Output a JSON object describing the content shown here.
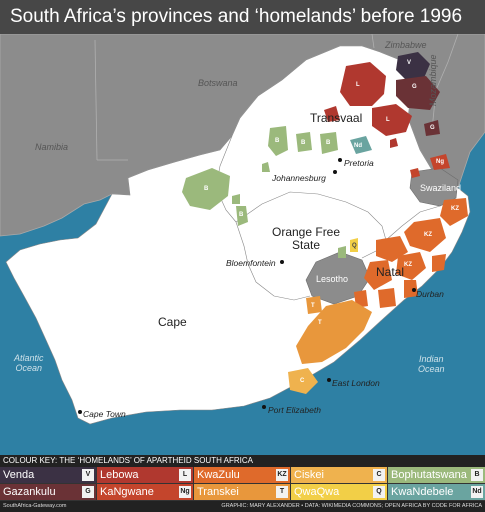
{
  "title": "South Africa’s provinces and ‘homelands’ before 1996",
  "countries": {
    "zimbabwe": "Zimbabwe",
    "botswana": "Botswana",
    "namibia": "Namibia",
    "mozambique": "Mozambique",
    "swaziland": "Swaziland",
    "lesotho": "Lesotho"
  },
  "oceans": {
    "atlantic": "Atlantic\nOcean",
    "indian": "Indian\nOcean"
  },
  "provinces": {
    "transvaal": "Transvaal",
    "ofs": "Orange Free\nState",
    "natal": "Natal",
    "cape": "Cape"
  },
  "cities": {
    "pretoria": "Pretoria",
    "johannesburg": "Johannesburg",
    "bloemfontein": "Bloemfontein",
    "durban": "Durban",
    "east_london": "East London",
    "port_elizabeth": "Port Elizabeth",
    "cape_town": "Cape Town"
  },
  "homeland_codes": {
    "V": "V",
    "G": "G",
    "L": "L",
    "KZ": "KZ",
    "B": "B",
    "Nd": "Nd",
    "Ng": "Ng",
    "T": "T",
    "C": "C",
    "Q": "Q"
  },
  "colors": {
    "ocean": "#2e80a4",
    "foreign": "#8c8c8c",
    "south_africa": "#ffffff",
    "venda": "#3b3144",
    "gazankulu": "#6a3236",
    "lebowa": "#b0382f",
    "kangwane": "#c4452c",
    "kwazulu": "#df6a2b",
    "transkei": "#e8973c",
    "ciskei": "#efb24e",
    "qwaqwa": "#f2cf47",
    "bophuthatswana": "#9bb97c",
    "kwandebele": "#6aa4a0"
  },
  "key": {
    "title": "COLOUR KEY: THE ‘HOMELANDS’ OF APARTHEID SOUTH AFRICA",
    "items": [
      {
        "name": "Venda",
        "code": "V",
        "color": "#3b3144"
      },
      {
        "name": "Lebowa",
        "code": "L",
        "color": "#b0382f"
      },
      {
        "name": "KwaZulu",
        "code": "KZ",
        "color": "#df6a2b"
      },
      {
        "name": "Ciskei",
        "code": "C",
        "color": "#efb24e"
      },
      {
        "name": "Bophutatswana",
        "code": "B",
        "color": "#9bb97c"
      },
      {
        "name": "Gazankulu",
        "code": "G",
        "color": "#6a3236"
      },
      {
        "name": "KaNgwane",
        "code": "Ng",
        "color": "#c4452c"
      },
      {
        "name": "Transkei",
        "code": "T",
        "color": "#e8973c"
      },
      {
        "name": "QwaQwa",
        "code": "Q",
        "color": "#f2cf47"
      },
      {
        "name": "KwaNdebele",
        "code": "Nd",
        "color": "#6aa4a0"
      }
    ]
  },
  "footer": {
    "left": "SouthAfrica-Gateway.com",
    "right": "GRAPHIC: MARY ALEXANDER • DATA: WIKIMEDIA COMMONS; OPEN AFRICA BY CODE FOR AFRICA"
  }
}
